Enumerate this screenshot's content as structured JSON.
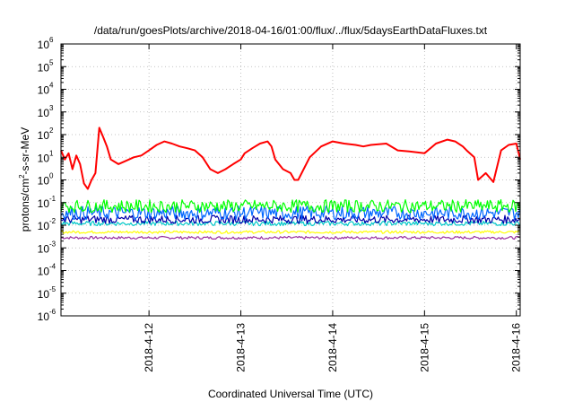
{
  "chart_data": {
    "type": "line",
    "title": "/data/run/goesPlots/archive/2018-04-16/01:00/flux/../flux/5daysEarthDataFluxes.txt",
    "xlabel": "Coordinated Universal Time (UTC)",
    "ylabel": "protons/cm²-s-sr-MeV",
    "y_scale": "log",
    "ylim": [
      1e-06,
      1000000.0
    ],
    "xlim": [
      "2018-04-11 01:00",
      "2018-04-16 01:00"
    ],
    "x_ticks": [
      "2018-4-12",
      "2018-4-13",
      "2018-4-14",
      "2018-4-15",
      "2018-4-16"
    ],
    "y_ticks": [
      {
        "base": "10",
        "exp": "-6"
      },
      {
        "base": "10",
        "exp": "-5"
      },
      {
        "base": "10",
        "exp": "-4"
      },
      {
        "base": "10",
        "exp": "-3"
      },
      {
        "base": "10",
        "exp": "-2"
      },
      {
        "base": "10",
        "exp": "-1"
      },
      {
        "base": "10",
        "exp": "0"
      },
      {
        "base": "10",
        "exp": "1"
      },
      {
        "base": "10",
        "exp": "2"
      },
      {
        "base": "10",
        "exp": "3"
      },
      {
        "base": "10",
        "exp": "4"
      },
      {
        "base": "10",
        "exp": "5"
      },
      {
        "base": "10",
        "exp": "6"
      }
    ],
    "grid": true,
    "legend": "none",
    "series": [
      {
        "color": "#ff0000",
        "noise": 0,
        "x": [
          "2018-04-11 01:00",
          "2018-04-11 02:00",
          "2018-04-11 03:00",
          "2018-04-11 04:00",
          "2018-04-11 05:00",
          "2018-04-11 06:00",
          "2018-04-11 07:00",
          "2018-04-11 08:00",
          "2018-04-11 09:00",
          "2018-04-11 10:00",
          "2018-04-11 11:00",
          "2018-04-11 12:00",
          "2018-04-11 13:00",
          "2018-04-11 14:00",
          "2018-04-11 16:00",
          "2018-04-11 18:00",
          "2018-04-11 20:00",
          "2018-04-11 22:00",
          "2018-04-12 00:00",
          "2018-04-12 02:00",
          "2018-04-12 04:00",
          "2018-04-12 06:00",
          "2018-04-12 08:00",
          "2018-04-12 10:00",
          "2018-04-12 12:00",
          "2018-04-12 14:00",
          "2018-04-12 16:00",
          "2018-04-12 18:00",
          "2018-04-12 20:00",
          "2018-04-12 22:00",
          "2018-04-13 00:00",
          "2018-04-13 01:00",
          "2018-04-13 03:00",
          "2018-04-13 05:00",
          "2018-04-13 07:00",
          "2018-04-13 08:00",
          "2018-04-13 09:00",
          "2018-04-13 11:00",
          "2018-04-13 13:00",
          "2018-04-13 14:00",
          "2018-04-13 15:00",
          "2018-04-13 18:00",
          "2018-04-13 21:00",
          "2018-04-14 00:00",
          "2018-04-14 03:00",
          "2018-04-14 06:00",
          "2018-04-14 08:00",
          "2018-04-14 10:00",
          "2018-04-14 14:00",
          "2018-04-14 17:00",
          "2018-04-14 20:00",
          "2018-04-15 00:00",
          "2018-04-15 03:00",
          "2018-04-15 06:00",
          "2018-04-15 08:00",
          "2018-04-15 10:00",
          "2018-04-15 11:00",
          "2018-04-15 13:00",
          "2018-04-15 14:00",
          "2018-04-15 16:00",
          "2018-04-15 18:00",
          "2018-04-15 20:00",
          "2018-04-15 22:00",
          "2018-04-16 00:00",
          "2018-04-16 01:00"
        ],
        "y": [
          20,
          8,
          15,
          3,
          12,
          5,
          0.7,
          0.4,
          1,
          2,
          200,
          80,
          30,
          8,
          5,
          7,
          10,
          12,
          20,
          35,
          50,
          40,
          30,
          25,
          20,
          10,
          3,
          2,
          3,
          5,
          8,
          15,
          25,
          40,
          50,
          30,
          8,
          3,
          2,
          1,
          1,
          10,
          30,
          50,
          40,
          35,
          30,
          35,
          40,
          20,
          18,
          15,
          40,
          60,
          50,
          30,
          20,
          10,
          1,
          2,
          0.8,
          20,
          35,
          40,
          8
        ]
      },
      {
        "color": "#00ff00",
        "noise": 0.28,
        "x": [
          "2018-04-11 01:00",
          "2018-04-16 01:00"
        ],
        "y": [
          0.07,
          0.07
        ]
      },
      {
        "color": "#0066ff",
        "noise": 0.3,
        "x": [
          "2018-04-11 01:00",
          "2018-04-16 01:00"
        ],
        "y": [
          0.035,
          0.035
        ]
      },
      {
        "color": "#0000aa",
        "noise": 0.18,
        "x": [
          "2018-04-11 01:00",
          "2018-04-16 01:00"
        ],
        "y": [
          0.018,
          0.018
        ]
      },
      {
        "color": "#00c8c8",
        "noise": 0.1,
        "x": [
          "2018-04-11 01:00",
          "2018-04-16 01:00"
        ],
        "y": [
          0.012,
          0.012
        ]
      },
      {
        "color": "#ffff00",
        "noise": 0.06,
        "x": [
          "2018-04-11 01:00",
          "2018-04-16 01:00"
        ],
        "y": [
          0.005,
          0.005
        ]
      },
      {
        "color": "#9a30a0",
        "noise": 0.06,
        "x": [
          "2018-04-11 01:00",
          "2018-04-16 01:00"
        ],
        "y": [
          0.0028,
          0.0028
        ]
      }
    ]
  }
}
